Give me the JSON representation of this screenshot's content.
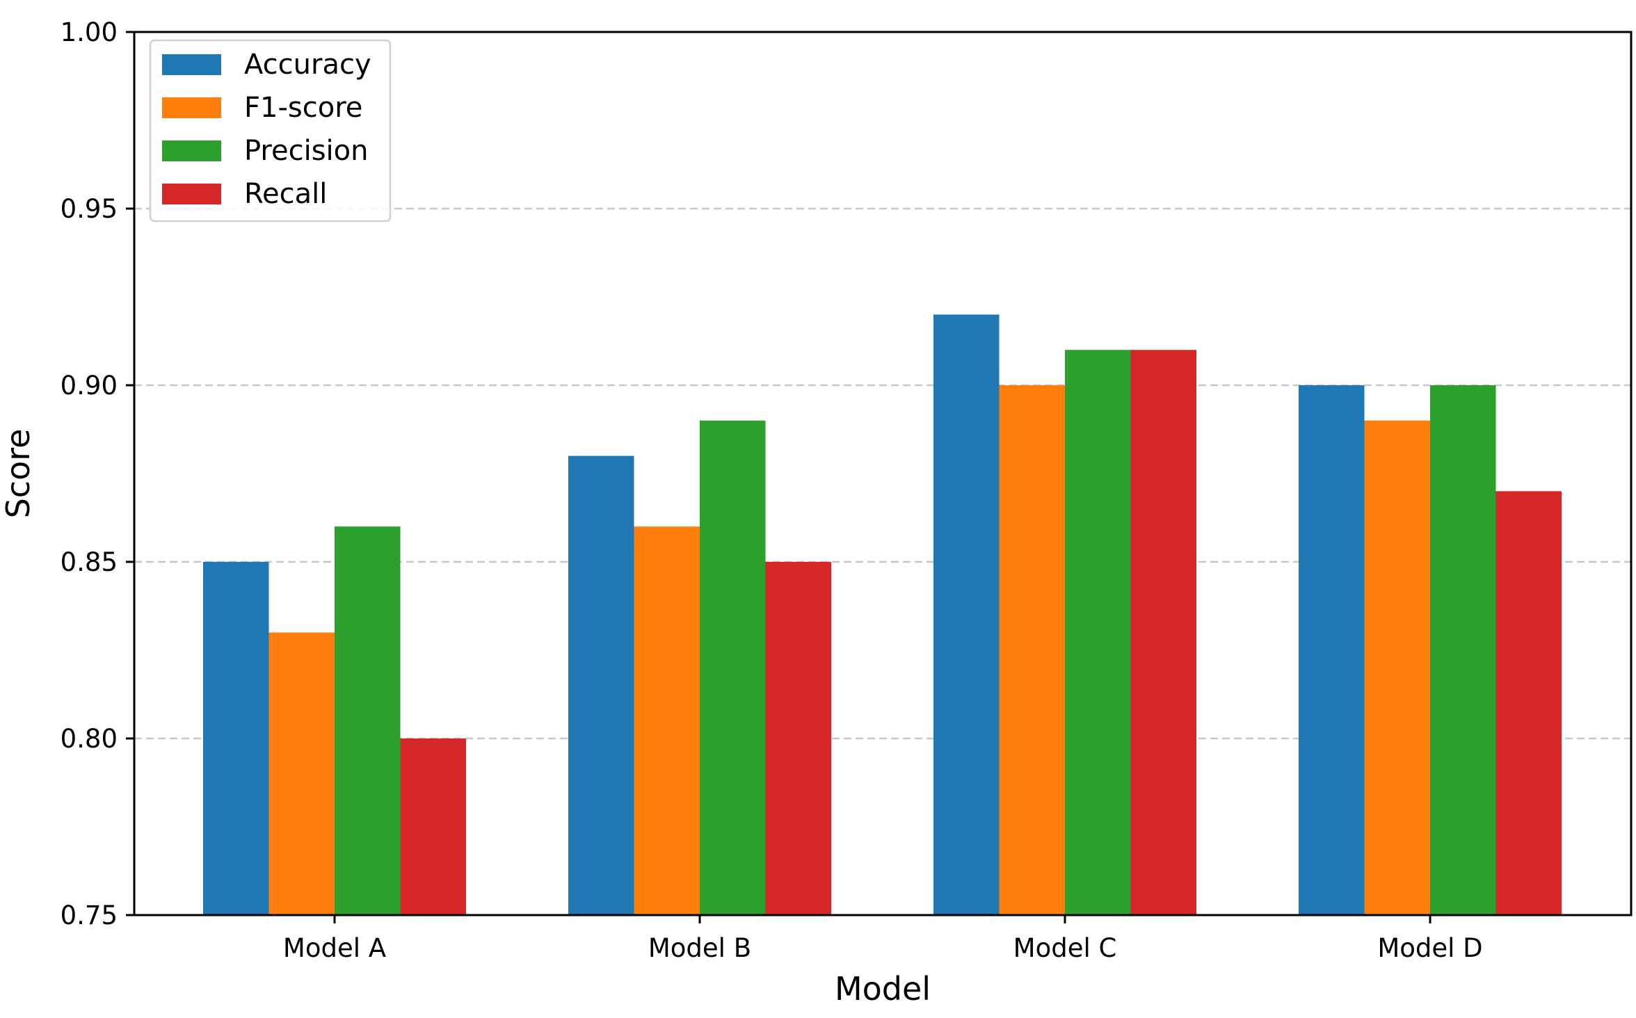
{
  "chart_data": {
    "type": "bar",
    "title": "",
    "xlabel": "Model",
    "ylabel": "Score",
    "categories": [
      "Model A",
      "Model B",
      "Model C",
      "Model D"
    ],
    "series": [
      {
        "name": "Accuracy",
        "color": "#1f77b4",
        "values": [
          0.85,
          0.88,
          0.92,
          0.9
        ]
      },
      {
        "name": "F1-score",
        "color": "#ff7f0e",
        "values": [
          0.83,
          0.86,
          0.9,
          0.89
        ]
      },
      {
        "name": "Precision",
        "color": "#2ca02c",
        "values": [
          0.86,
          0.89,
          0.91,
          0.9
        ]
      },
      {
        "name": "Recall",
        "color": "#d62728",
        "values": [
          0.8,
          0.85,
          0.91,
          0.87
        ]
      }
    ],
    "ylim": [
      0.75,
      1.0
    ],
    "yticks": [
      "0.75",
      "0.80",
      "0.85",
      "0.90",
      "0.95",
      "1.00"
    ],
    "grid": "y-dashed",
    "legend_position": "top-left"
  }
}
